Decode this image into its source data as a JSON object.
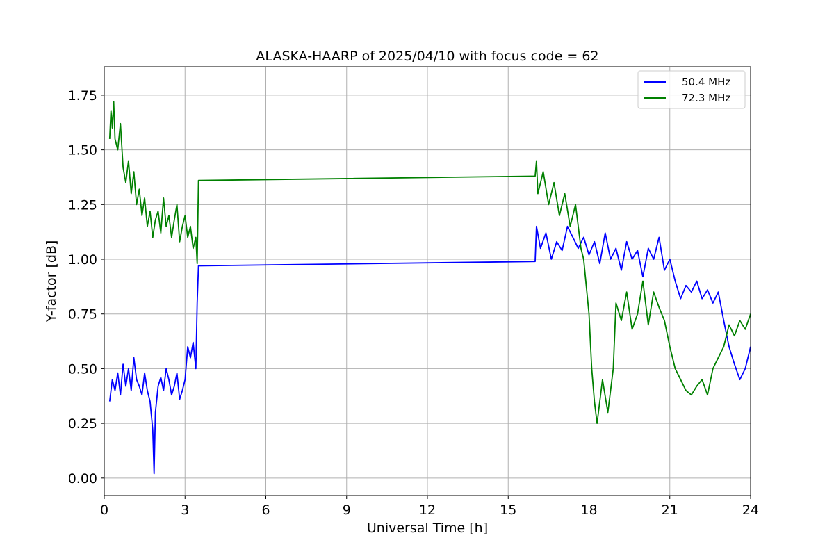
{
  "chart_data": {
    "type": "line",
    "title": "ALASKA-HAARP of 2025/04/10 with focus code = 62",
    "xlabel": "Universal Time [h]",
    "ylabel": "Y-factor [dB]",
    "xlim": [
      0,
      24
    ],
    "ylim": [
      -0.08,
      1.88
    ],
    "xticks": [
      0,
      3,
      6,
      9,
      12,
      15,
      18,
      21,
      24
    ],
    "xtick_labels": [
      "0",
      "3",
      "6",
      "9",
      "12",
      "15",
      "18",
      "21",
      "24"
    ],
    "yticks": [
      0,
      0.25,
      0.5,
      0.75,
      1.0,
      1.25,
      1.5,
      1.75
    ],
    "ytick_labels": [
      "0.00",
      "0.25",
      "0.50",
      "0.75",
      "1.00",
      "1.25",
      "1.50",
      "1.75"
    ],
    "grid": true,
    "legend_position": "top-right",
    "series": [
      {
        "name": "50.4 MHz",
        "color": "#0000ff",
        "x": [
          0.2,
          0.3,
          0.4,
          0.5,
          0.6,
          0.7,
          0.8,
          0.9,
          1.0,
          1.1,
          1.2,
          1.3,
          1.4,
          1.5,
          1.6,
          1.7,
          1.8,
          1.85,
          1.9,
          2.0,
          2.1,
          2.2,
          2.3,
          2.4,
          2.5,
          2.6,
          2.7,
          2.8,
          2.9,
          3.0,
          3.1,
          3.2,
          3.3,
          3.4,
          3.45,
          3.5,
          16.0,
          16.05,
          16.2,
          16.4,
          16.6,
          16.8,
          17.0,
          17.2,
          17.4,
          17.6,
          17.8,
          18.0,
          18.2,
          18.4,
          18.6,
          18.8,
          19.0,
          19.2,
          19.4,
          19.6,
          19.8,
          20.0,
          20.2,
          20.4,
          20.6,
          20.8,
          21.0,
          21.2,
          21.4,
          21.6,
          21.8,
          22.0,
          22.2,
          22.4,
          22.6,
          22.8,
          23.0,
          23.2,
          23.4,
          23.6,
          23.8,
          24.0
        ],
        "y": [
          0.35,
          0.45,
          0.4,
          0.48,
          0.38,
          0.52,
          0.42,
          0.5,
          0.4,
          0.55,
          0.45,
          0.42,
          0.38,
          0.48,
          0.4,
          0.35,
          0.22,
          0.02,
          0.3,
          0.42,
          0.46,
          0.4,
          0.5,
          0.45,
          0.38,
          0.42,
          0.48,
          0.36,
          0.4,
          0.45,
          0.6,
          0.55,
          0.62,
          0.5,
          0.8,
          0.97,
          0.99,
          1.15,
          1.05,
          1.12,
          1.0,
          1.08,
          1.04,
          1.15,
          1.1,
          1.05,
          1.1,
          1.02,
          1.08,
          0.98,
          1.12,
          1.0,
          1.05,
          0.95,
          1.08,
          1.0,
          1.04,
          0.92,
          1.05,
          1.0,
          1.1,
          0.95,
          1.0,
          0.9,
          0.82,
          0.88,
          0.85,
          0.9,
          0.82,
          0.86,
          0.8,
          0.85,
          0.72,
          0.6,
          0.52,
          0.45,
          0.5,
          0.6
        ]
      },
      {
        "name": "72.3 MHz",
        "color": "#008000",
        "x": [
          0.2,
          0.25,
          0.3,
          0.35,
          0.4,
          0.5,
          0.6,
          0.7,
          0.8,
          0.9,
          1.0,
          1.1,
          1.2,
          1.3,
          1.4,
          1.5,
          1.6,
          1.7,
          1.8,
          1.9,
          2.0,
          2.1,
          2.2,
          2.3,
          2.4,
          2.5,
          2.6,
          2.7,
          2.8,
          2.9,
          3.0,
          3.1,
          3.2,
          3.3,
          3.4,
          3.45,
          3.5,
          16.0,
          16.05,
          16.1,
          16.3,
          16.5,
          16.7,
          16.9,
          17.1,
          17.3,
          17.5,
          17.7,
          17.8,
          18.0,
          18.1,
          18.2,
          18.3,
          18.5,
          18.7,
          18.9,
          19.0,
          19.2,
          19.4,
          19.6,
          19.8,
          20.0,
          20.2,
          20.4,
          20.6,
          20.8,
          21.0,
          21.2,
          21.4,
          21.6,
          21.8,
          22.0,
          22.2,
          22.4,
          22.6,
          22.8,
          23.0,
          23.2,
          23.4,
          23.6,
          23.8,
          24.0
        ],
        "y": [
          1.55,
          1.68,
          1.6,
          1.72,
          1.55,
          1.5,
          1.62,
          1.42,
          1.35,
          1.45,
          1.3,
          1.4,
          1.25,
          1.32,
          1.2,
          1.28,
          1.15,
          1.22,
          1.1,
          1.18,
          1.22,
          1.12,
          1.28,
          1.15,
          1.2,
          1.1,
          1.18,
          1.25,
          1.08,
          1.15,
          1.2,
          1.1,
          1.15,
          1.05,
          1.1,
          0.98,
          1.36,
          1.38,
          1.45,
          1.3,
          1.4,
          1.25,
          1.35,
          1.2,
          1.3,
          1.15,
          1.25,
          1.05,
          1.0,
          0.75,
          0.5,
          0.35,
          0.25,
          0.45,
          0.3,
          0.5,
          0.8,
          0.72,
          0.85,
          0.68,
          0.75,
          0.9,
          0.7,
          0.85,
          0.78,
          0.72,
          0.6,
          0.5,
          0.45,
          0.4,
          0.38,
          0.42,
          0.45,
          0.38,
          0.5,
          0.55,
          0.6,
          0.7,
          0.65,
          0.72,
          0.68,
          0.75
        ]
      }
    ]
  }
}
